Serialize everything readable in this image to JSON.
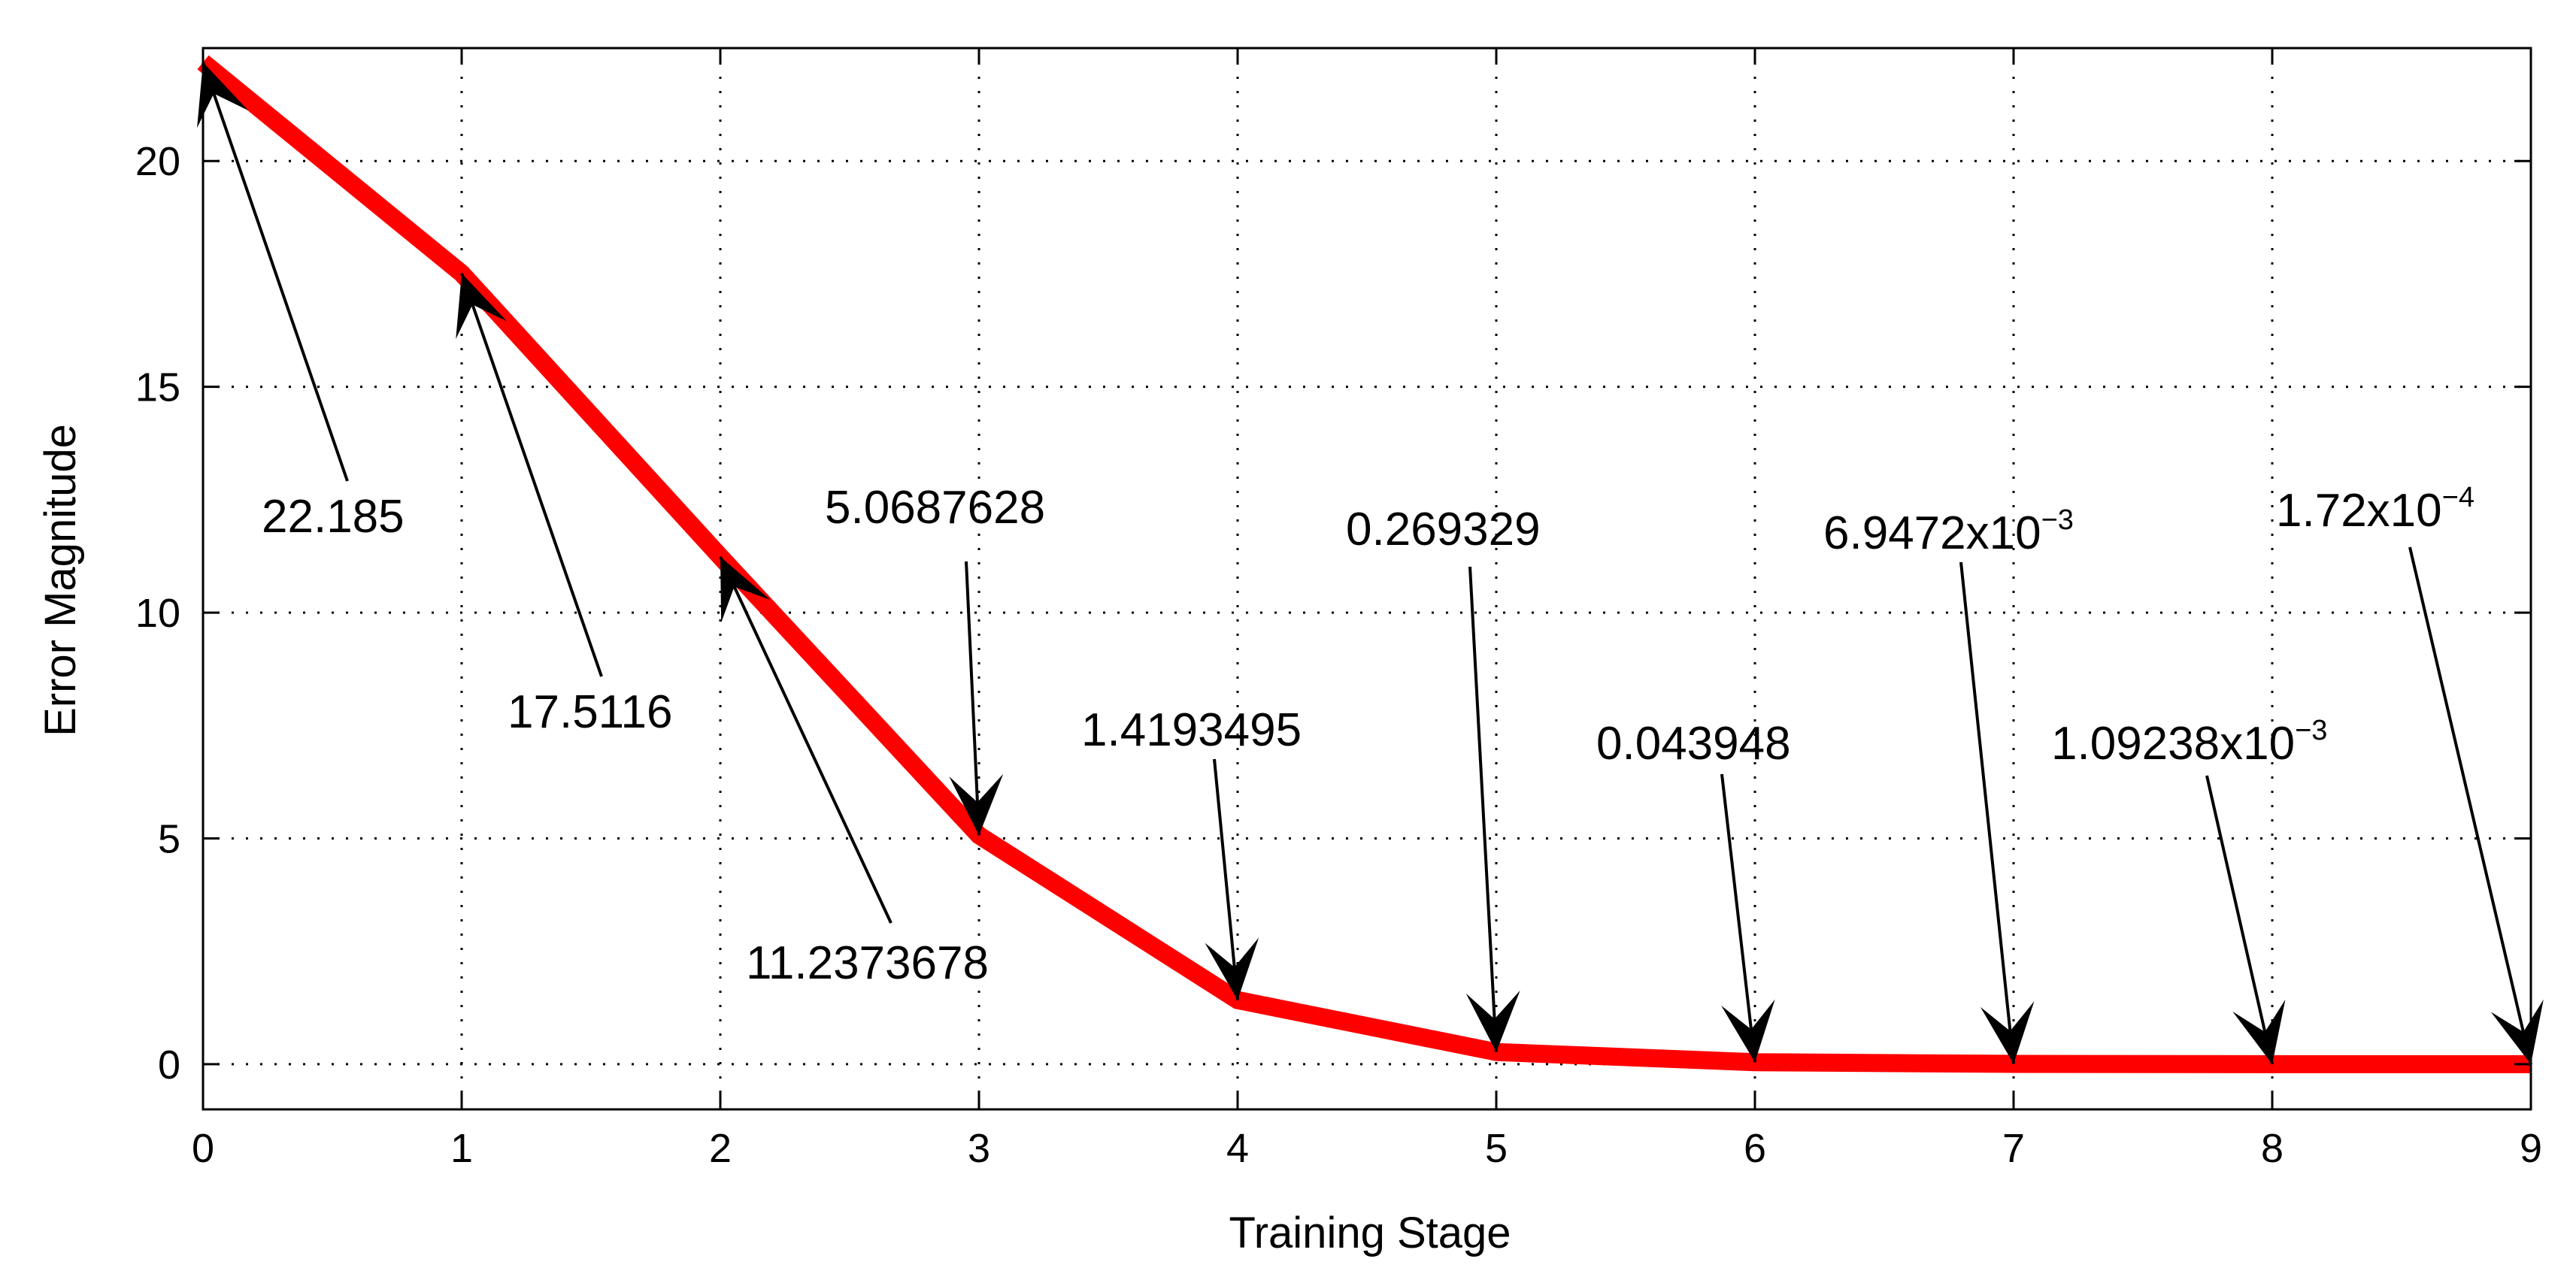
{
  "chart_data": {
    "type": "line",
    "xlabel": "Training Stage",
    "ylabel": "Error Magnitude",
    "xlim": [
      0,
      9
    ],
    "ylim": [
      -1,
      22.5
    ],
    "xticks": [
      "0",
      "1",
      "2",
      "3",
      "4",
      "5",
      "6",
      "7",
      "8",
      "9"
    ],
    "yticks": [
      "0",
      "5",
      "10",
      "15",
      "20"
    ],
    "grid": true,
    "line_color": "#ff0000",
    "series": [
      {
        "x": [
          0,
          1,
          2,
          3,
          4,
          5,
          6,
          7,
          8,
          9
        ],
        "values": [
          22.185,
          17.5116,
          11.2373678,
          5.0687628,
          1.4193495,
          0.269329,
          0.043948,
          0.0069472,
          0.00109238,
          0.000172
        ]
      }
    ],
    "annotations": [
      {
        "x": 0,
        "y": 22.185,
        "base": "22.185",
        "sup": ""
      },
      {
        "x": 1,
        "y": 17.5116,
        "base": "17.5116",
        "sup": ""
      },
      {
        "x": 2,
        "y": 11.2373678,
        "base": "11.2373678",
        "sup": ""
      },
      {
        "x": 3,
        "y": 5.0687628,
        "base": "5.0687628",
        "sup": ""
      },
      {
        "x": 4,
        "y": 1.4193495,
        "base": "1.4193495",
        "sup": ""
      },
      {
        "x": 5,
        "y": 0.269329,
        "base": "0.269329",
        "sup": ""
      },
      {
        "x": 6,
        "y": 0.043948,
        "base": "0.043948",
        "sup": ""
      },
      {
        "x": 7,
        "y": 0.0069472,
        "base": "6.9472x10",
        "sup": "−3"
      },
      {
        "x": 8,
        "y": 0.00109238,
        "base": "1.09238x10",
        "sup": "−3"
      },
      {
        "x": 9,
        "y": 0.000172,
        "base": "1.72x10",
        "sup": "−4"
      }
    ]
  }
}
